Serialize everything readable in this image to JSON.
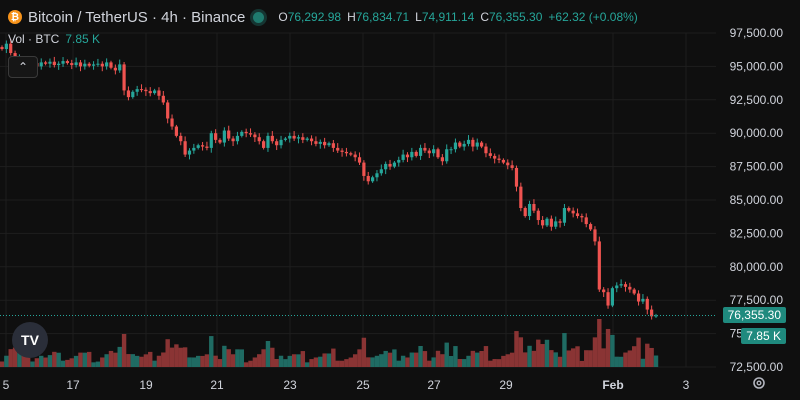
{
  "header": {
    "coin_glyph": "₿",
    "title": "Bitcoin / TetherUS · 4h · Binance",
    "o_label": "O",
    "o_value": "76,292.98",
    "h_label": "H",
    "h_value": "76,834.71",
    "l_label": "L",
    "l_value": "74,911.14",
    "c_label": "C",
    "c_value": "76,355.30",
    "change": "+62.32 (+0.08%)"
  },
  "volume_legend": {
    "label": "Vol · BTC",
    "value": "7.85 K"
  },
  "collapse_glyph": "⌃",
  "logo_text": "TV",
  "price_tag": "76,355.30",
  "volume_tag": "7.85 K",
  "colors": {
    "up": "#26a69a",
    "down": "#ef5350",
    "up_vol": "#1f6b63",
    "down_vol": "#8a3434",
    "background": "#0f0f0f",
    "grid": "#1e1e1e",
    "text": "#d1d4dc"
  },
  "chart_data": {
    "type": "candlestick",
    "symbol": "BTC/USDT",
    "timeframe": "4h",
    "exchange": "Binance",
    "x_tick_labels": [
      "5",
      "17",
      "19",
      "21",
      "23",
      "25",
      "27",
      "29",
      "Feb",
      "3"
    ],
    "y_tick_labels": [
      "97,500.00",
      "95,000.00",
      "92,500.00",
      "90,000.00",
      "87,500.00",
      "85,000.00",
      "82,500.00",
      "80,000.00",
      "77,500.00",
      "75,000.00",
      "72,500.00"
    ],
    "ylim": [
      72500,
      97500
    ],
    "last_price": 76355.3,
    "last_volume": "7.85 K",
    "closes": [
      96300,
      96700,
      96000,
      95300,
      95600,
      95500,
      95100,
      95250,
      95000,
      95300,
      95200,
      95350,
      95100,
      95200,
      95400,
      95250,
      95100,
      95300,
      95000,
      95200,
      95050,
      95150,
      95200,
      95000,
      95300,
      94900,
      94700,
      95150,
      93200,
      92700,
      93100,
      93300,
      93250,
      93150,
      93000,
      93200,
      92800,
      92300,
      91100,
      90500,
      89800,
      89400,
      88400,
      88700,
      88900,
      89100,
      89000,
      88900,
      90000,
      89500,
      89300,
      90200,
      89600,
      89400,
      89800,
      90100,
      90000,
      89900,
      89700,
      89400,
      88900,
      89800,
      89400,
      89100,
      89500,
      89600,
      89800,
      89600,
      89700,
      89500,
      89600,
      89400,
      89200,
      89350,
      89100,
      89250,
      88900,
      88700,
      88600,
      88500,
      88400,
      88200,
      87800,
      86800,
      86400,
      86700,
      87000,
      87300,
      87700,
      87500,
      87800,
      88000,
      88400,
      88200,
      88600,
      88300,
      88900,
      88700,
      88500,
      88800,
      88200,
      87900,
      88800,
      88800,
      89300,
      89000,
      89200,
      89500,
      89000,
      89300,
      89000,
      88500,
      88300,
      88100,
      88000,
      87800,
      87600,
      87400,
      86000,
      84400,
      83800,
      84700,
      84200,
      83500,
      83100,
      83600,
      83000,
      83400,
      83300,
      84400,
      84200,
      84000,
      83800,
      83700,
      83200,
      82800,
      81900,
      78300,
      78100,
      77100,
      78400,
      78600,
      78700,
      78500,
      78300,
      78000,
      77400,
      77600,
      76800,
      76292.98,
      76355.3
    ],
    "volume_scale": "relative"
  }
}
